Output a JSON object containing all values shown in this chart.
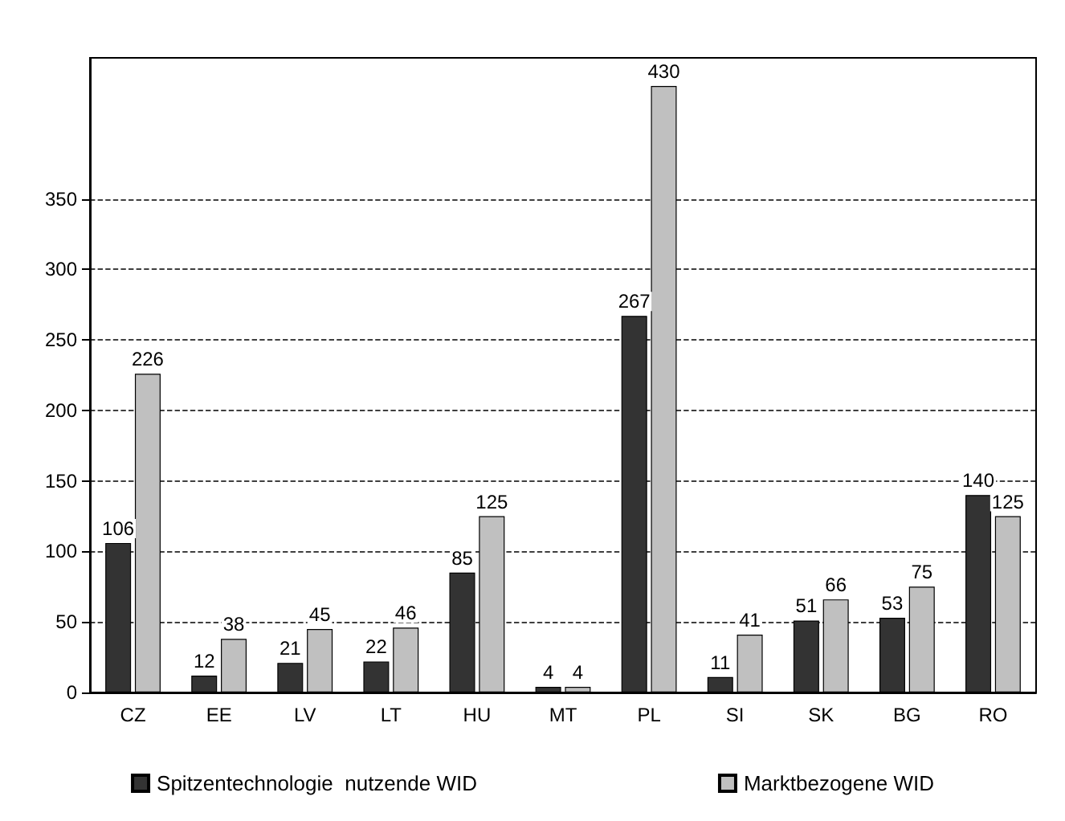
{
  "chart_data": {
    "type": "bar",
    "categories": [
      "CZ",
      "EE",
      "LV",
      "LT",
      "HU",
      "MT",
      "PL",
      "SI",
      "SK",
      "BG",
      "RO"
    ],
    "series": [
      {
        "name": "Spitzentechnologie  nutzende WID",
        "color": "#333333",
        "values": [
          106,
          12,
          21,
          22,
          85,
          4,
          267,
          11,
          51,
          53,
          140
        ]
      },
      {
        "name": "Marktbezogene WID",
        "color": "#c0c0c0",
        "values": [
          226,
          38,
          45,
          46,
          125,
          4,
          430,
          41,
          66,
          75,
          125
        ]
      }
    ],
    "ylim": [
      0,
      450
    ],
    "yticks": [
      0,
      50,
      100,
      150,
      200,
      250,
      300,
      350
    ],
    "grid": "y",
    "legend": "bottom",
    "data_labels": true
  }
}
